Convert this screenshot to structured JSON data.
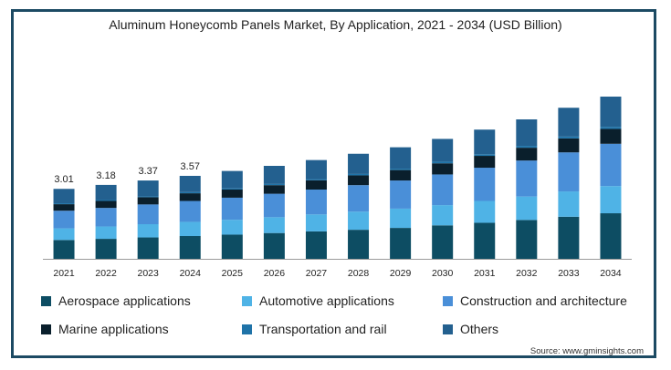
{
  "chart_data": {
    "type": "bar",
    "stacked": true,
    "title": "Aluminum Honeycomb Panels Market, By Application, 2021 - 2034 (USD Billion)",
    "categories": [
      "2021",
      "2022",
      "2023",
      "2024",
      "2025",
      "2026",
      "2027",
      "2028",
      "2029",
      "2030",
      "2031",
      "2032",
      "2033",
      "2034"
    ],
    "totals_labels": [
      "3.01",
      "3.18",
      "3.37",
      "3.57",
      "",
      "",
      "",
      "",
      "",
      "",
      "",
      "",
      "",
      ""
    ],
    "series": [
      {
        "name": "Aerospace applications",
        "color": "#0d4d63",
        "values": [
          0.81,
          0.86,
          0.92,
          0.98,
          1.04,
          1.11,
          1.18,
          1.25,
          1.33,
          1.44,
          1.55,
          1.67,
          1.81,
          1.96
        ]
      },
      {
        "name": "Automotive applications",
        "color": "#4fb3e6",
        "values": [
          0.5,
          0.53,
          0.57,
          0.61,
          0.64,
          0.68,
          0.73,
          0.78,
          0.83,
          0.87,
          0.94,
          1.01,
          1.09,
          1.17
        ]
      },
      {
        "name": "Construction and architecture",
        "color": "#4a8fd8",
        "values": [
          0.76,
          0.8,
          0.85,
          0.9,
          0.95,
          1.01,
          1.07,
          1.14,
          1.21,
          1.32,
          1.43,
          1.55,
          1.68,
          1.82
        ]
      },
      {
        "name": "Marine applications",
        "color": "#0a1f2c",
        "values": [
          0.28,
          0.3,
          0.31,
          0.33,
          0.35,
          0.37,
          0.4,
          0.42,
          0.45,
          0.48,
          0.51,
          0.55,
          0.6,
          0.64
        ]
      },
      {
        "name": "Transportation and rail",
        "color": "#1f73a8",
        "values": [
          0.04,
          0.04,
          0.04,
          0.05,
          0.05,
          0.05,
          0.05,
          0.06,
          0.06,
          0.07,
          0.07,
          0.08,
          0.08,
          0.09
        ]
      },
      {
        "name": "Others",
        "color": "#23608f",
        "values": [
          0.62,
          0.65,
          0.68,
          0.7,
          0.75,
          0.78,
          0.82,
          0.87,
          0.92,
          0.98,
          1.06,
          1.14,
          1.24,
          1.3
        ]
      }
    ],
    "ylim": [
      0,
      8.0
    ],
    "grid": false,
    "legend_position": "bottom"
  },
  "source_text": "Source: www.gminsights.com"
}
